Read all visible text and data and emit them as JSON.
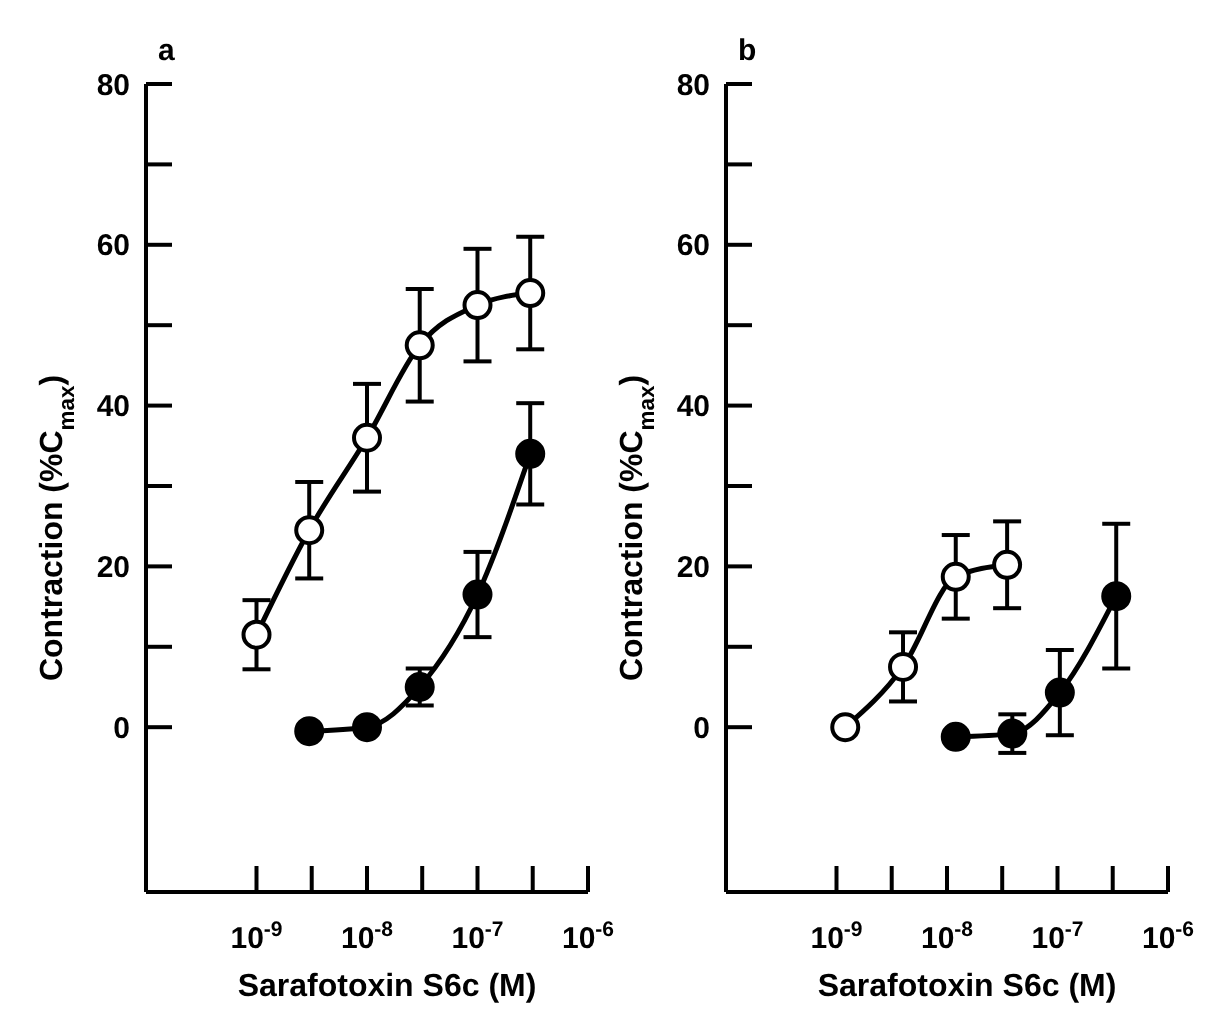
{
  "chart_data": [
    {
      "type": "line",
      "title": "a",
      "xlabel": "Sarafotoxin S6c (M)",
      "ylabel": "Contraction (%C$_{max}$)",
      "log": "x",
      "marker": "circle",
      "line_style": "solid",
      "grid": false,
      "xlim": [
        1e-10,
        1e-06
      ],
      "ylim": [
        -20.5,
        80
      ],
      "xticks": [
        {
          "value": 1e-09,
          "label": "10$^{-9}$"
        },
        {
          "value": 3.16e-09,
          "label": null
        },
        {
          "value": 1e-08,
          "label": "10$^{-8}$"
        },
        {
          "value": 3.16e-08,
          "label": null
        },
        {
          "value": 1e-07,
          "label": "10$^{-7}$"
        },
        {
          "value": 3.16e-07,
          "label": null
        },
        {
          "value": 1e-06,
          "label": "10$^{-6}$"
        }
      ],
      "yticks": [
        0,
        {
          "value": 10,
          "label": null
        },
        20,
        {
          "value": 30,
          "label": null
        },
        40,
        {
          "value": 50,
          "label": null
        },
        60,
        {
          "value": 70,
          "label": null
        },
        80
      ],
      "series": [
        {
          "color": "#ffffff",
          "x": [
            1e-09,
            3e-09,
            1e-08,
            3e-08,
            1e-07,
            3e-07
          ],
          "values": [
            11.5,
            24.5,
            36,
            47.5,
            52.5,
            54
          ],
          "errors": [
            4.3,
            6,
            6.7,
            7,
            7,
            7
          ]
        },
        {
          "color": "#000000",
          "x": [
            3e-09,
            1e-08,
            3e-08,
            1e-07,
            3e-07
          ],
          "values": [
            -0.5,
            0,
            5,
            16.5,
            34
          ],
          "errors": [
            null,
            null,
            2.3,
            5.3,
            6.3
          ]
        }
      ]
    },
    {
      "type": "line",
      "title": "b",
      "xlabel": "Sarafotoxin S6c (M)",
      "ylabel": "Contraction (%C$_{max}$)",
      "log": "x",
      "marker": "circle",
      "line_style": "solid",
      "grid": false,
      "xlim": [
        1e-10,
        1e-06
      ],
      "ylim": [
        -20.5,
        80
      ],
      "xticks": [
        {
          "value": 1e-09,
          "label": "10$^{-9}$"
        },
        {
          "value": 3.16e-09,
          "label": null
        },
        {
          "value": 1e-08,
          "label": "10$^{-8}$"
        },
        {
          "value": 3.16e-08,
          "label": null
        },
        {
          "value": 1e-07,
          "label": "10$^{-7}$"
        },
        {
          "value": 3.16e-07,
          "label": null
        },
        {
          "value": 1e-06,
          "label": "10$^{-6}$"
        }
      ],
      "yticks": [
        0,
        {
          "value": 10,
          "label": null
        },
        20,
        {
          "value": 30,
          "label": null
        },
        40,
        {
          "value": 50,
          "label": null
        },
        60,
        {
          "value": 70,
          "label": null
        },
        80
      ],
      "series": [
        {
          "color": "#ffffff",
          "x": [
            1.2e-09,
            4e-09,
            1.2e-08,
            3.5e-08
          ],
          "values": [
            0,
            7.5,
            18.7,
            20.2
          ],
          "errors": [
            null,
            4.3,
            5.2,
            5.4
          ]
        },
        {
          "color": "#000000",
          "x": [
            1.2e-08,
            3.9e-08,
            1.05e-07,
            3.4e-07
          ],
          "values": [
            -1.2,
            -0.8,
            4.3,
            16.3
          ],
          "errors": [
            null,
            2.4,
            5.3,
            9
          ]
        }
      ]
    }
  ]
}
